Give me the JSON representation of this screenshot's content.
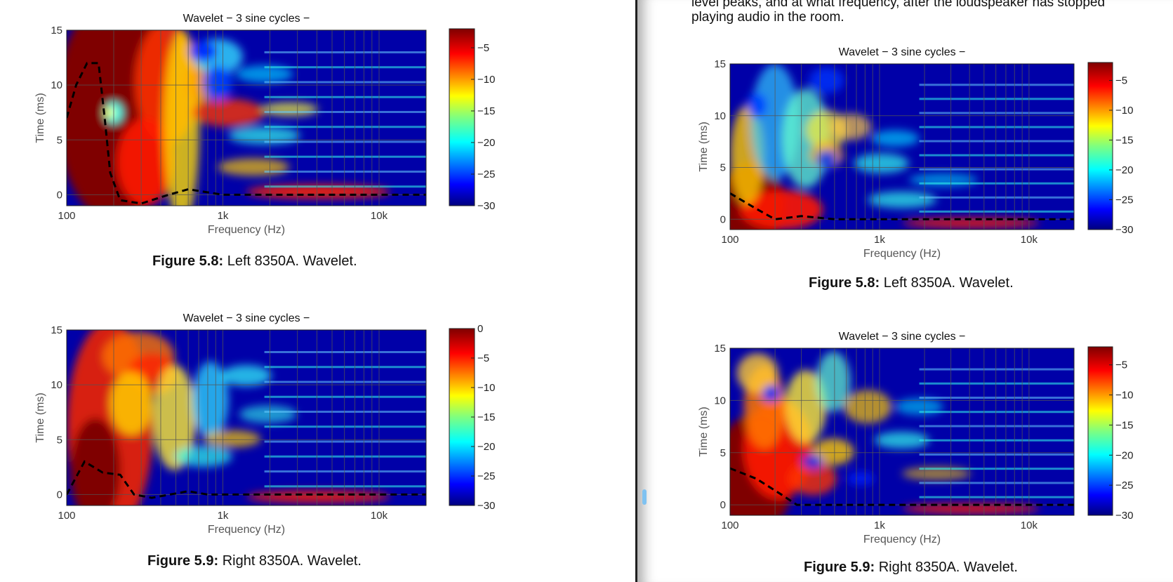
{
  "document": {
    "right_text_line1": "level peaks, and at what frequency, after the loudspeaker has stopped",
    "right_text_line2": "playing audio in the room."
  },
  "figures": {
    "left_top": {
      "num": "Figure 5.8:",
      "text": "Left 8350A. Wavelet."
    },
    "left_bottom": {
      "num": "Figure 5.9:",
      "text": "Right 8350A. Wavelet."
    },
    "right_top": {
      "num": "Figure 5.8:",
      "text": "Left 8350A. Wavelet."
    },
    "right_bottom": {
      "num": "Figure 5.9:",
      "text": "Right 8350A. Wavelet."
    }
  },
  "chart_data": [
    {
      "type": "heatmap",
      "title": "Wavelet − 3 sine cycles −",
      "xlabel": "Frequency (Hz)",
      "ylabel": "Time (ms)",
      "x_scale": "log",
      "xlim": [
        100,
        20000
      ],
      "ylim": [
        -1,
        15
      ],
      "xticks": [
        "100",
        "1k",
        "10k"
      ],
      "yticks": [
        "0",
        "5",
        "10",
        "15"
      ],
      "colorbar_ticks": [
        "−5",
        "−10",
        "−15",
        "−20",
        "−25",
        "−30"
      ],
      "colorbar_range": [
        -30,
        -2
      ],
      "dashed_line": [
        [
          100,
          7
        ],
        [
          115,
          10
        ],
        [
          135,
          12
        ],
        [
          160,
          12
        ],
        [
          175,
          7
        ],
        [
          190,
          2
        ],
        [
          220,
          -0.5
        ],
        [
          300,
          -0.8
        ],
        [
          450,
          0
        ],
        [
          600,
          0.5
        ],
        [
          1000,
          0
        ],
        [
          20000,
          0
        ]
      ]
    },
    {
      "type": "heatmap",
      "title": "Wavelet − 3 sine cycles −",
      "xlabel": "Frequency (Hz)",
      "ylabel": "Time (ms)",
      "x_scale": "log",
      "xlim": [
        100,
        20000
      ],
      "ylim": [
        -1,
        15
      ],
      "xticks": [
        "100",
        "1k",
        "10k"
      ],
      "yticks": [
        "0",
        "5",
        "10",
        "15"
      ],
      "colorbar_ticks": [
        "0",
        "−5",
        "−10",
        "−15",
        "−20",
        "−25",
        "−30"
      ],
      "colorbar_range": [
        -30,
        0
      ],
      "dashed_line": [
        [
          100,
          0
        ],
        [
          130,
          3
        ],
        [
          170,
          2
        ],
        [
          220,
          1.8
        ],
        [
          270,
          0
        ],
        [
          350,
          -0.3
        ],
        [
          600,
          0.3
        ],
        [
          800,
          0
        ],
        [
          20000,
          0
        ]
      ]
    },
    {
      "type": "heatmap",
      "title": "Wavelet − 3 sine cycles −",
      "xlabel": "Frequency (Hz)",
      "ylabel": "Time (ms)",
      "x_scale": "log",
      "xlim": [
        100,
        20000
      ],
      "ylim": [
        -1,
        15
      ],
      "xticks": [
        "100",
        "1k",
        "10k"
      ],
      "yticks": [
        "0",
        "5",
        "10",
        "15"
      ],
      "colorbar_ticks": [
        "−5",
        "−10",
        "−15",
        "−20",
        "−25",
        "−30"
      ],
      "colorbar_range": [
        -30,
        -2
      ],
      "dashed_line": [
        [
          100,
          2.5
        ],
        [
          150,
          1
        ],
        [
          200,
          0
        ],
        [
          300,
          0.3
        ],
        [
          500,
          0
        ],
        [
          20000,
          0
        ]
      ]
    },
    {
      "type": "heatmap",
      "title": "Wavelet − 3 sine cycles −",
      "xlabel": "Frequency (Hz)",
      "ylabel": "Time (ms)",
      "x_scale": "log",
      "xlim": [
        100,
        20000
      ],
      "ylim": [
        -1,
        15
      ],
      "xticks": [
        "100",
        "1k",
        "10k"
      ],
      "yticks": [
        "0",
        "5",
        "10",
        "15"
      ],
      "colorbar_ticks": [
        "−5",
        "−10",
        "−15",
        "−20",
        "−25",
        "−30"
      ],
      "colorbar_range": [
        -30,
        -2
      ],
      "dashed_line": [
        [
          100,
          3.5
        ],
        [
          150,
          2.5
        ],
        [
          220,
          1
        ],
        [
          280,
          0
        ],
        [
          400,
          0
        ],
        [
          20000,
          0
        ]
      ]
    }
  ]
}
